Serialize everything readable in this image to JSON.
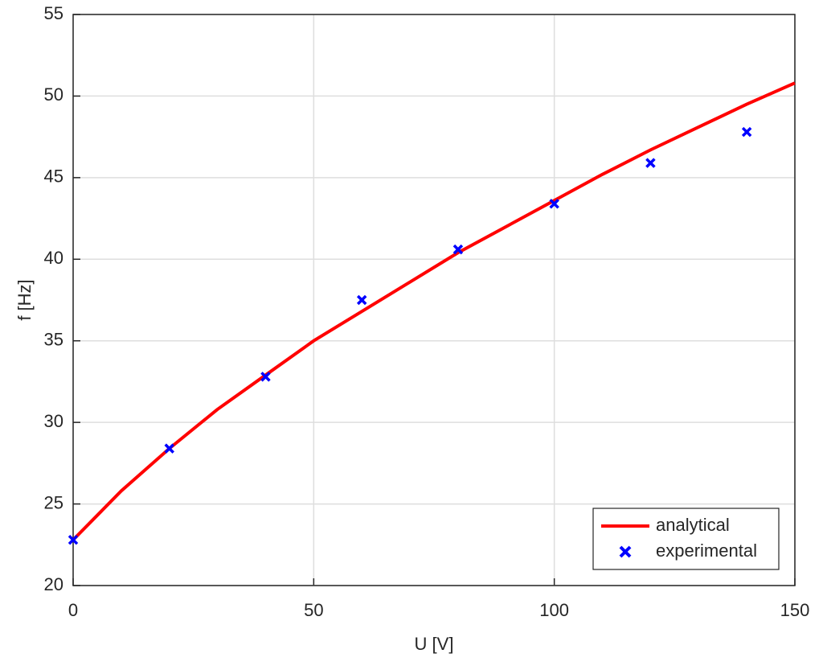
{
  "chart_data": {
    "type": "line",
    "xlabel": "U [V]",
    "ylabel": "f [Hz]",
    "xlim": [
      0,
      150
    ],
    "xticks": [
      0,
      50,
      100,
      150
    ],
    "ylim": [
      20,
      55
    ],
    "yticks": [
      20,
      25,
      30,
      35,
      40,
      45,
      50,
      55
    ],
    "grid": true,
    "legend": "southeast",
    "series": [
      {
        "name": "analytical",
        "color": "#ff0000",
        "mode": "line",
        "x": [
          0,
          10,
          20,
          30,
          40,
          50,
          60,
          70,
          80,
          90,
          100,
          110,
          120,
          130,
          140,
          150
        ],
        "values": [
          22.8,
          25.8,
          28.4,
          30.8,
          32.9,
          35.0,
          36.8,
          38.6,
          40.4,
          42.0,
          43.6,
          45.2,
          46.7,
          48.1,
          49.5,
          50.8
        ]
      },
      {
        "name": "experimental",
        "color": "#0000ff",
        "mode": "markers",
        "x": [
          0,
          20,
          40,
          60,
          80,
          100,
          120,
          140
        ],
        "values": [
          22.8,
          28.4,
          32.8,
          37.5,
          40.6,
          43.4,
          45.9,
          47.8
        ]
      }
    ]
  }
}
